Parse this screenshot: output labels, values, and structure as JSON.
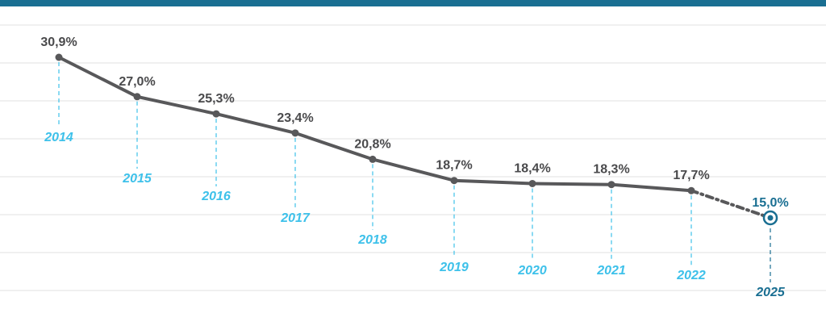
{
  "chart_data": {
    "type": "line",
    "x": [
      "2014",
      "2015",
      "2016",
      "2017",
      "2018",
      "2019",
      "2020",
      "2021",
      "2022",
      "2025"
    ],
    "series": [
      {
        "values": [
          30.9,
          27.0,
          25.3,
          23.4,
          20.8,
          18.7,
          18.4,
          18.3,
          17.7,
          15.0
        ],
        "value_labels": [
          "30,9%",
          "27,0%",
          "25,3%",
          "23,4%",
          "20,8%",
          "18,7%",
          "18,4%",
          "18,3%",
          "17,7%",
          "15,0%"
        ]
      }
    ],
    "projected_points": [
      "2025"
    ],
    "title": "",
    "xlabel": "",
    "ylabel": "",
    "grid": true,
    "legend": "none"
  },
  "colors": {
    "header_bar": "#1a6f92",
    "line": "#58585a",
    "value_label": "#4a4a4c",
    "year_label": "#3ec1ea",
    "projection": "#1a6f92",
    "gridline": "#f0f0f0",
    "leader": "#3ec1ea"
  }
}
